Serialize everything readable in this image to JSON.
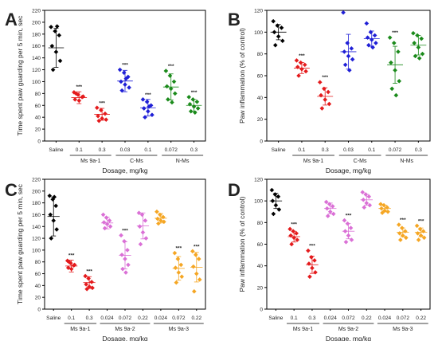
{
  "figure": {
    "xlabel_common": "Dosage, mg/kg"
  },
  "chart_data": [
    {
      "panel": "A",
      "type": "scatter",
      "ylabel": "Time spent paw guarding per 5 min, sec",
      "xlabel": "Dosage, mg/kg",
      "ylim": [
        0,
        220
      ],
      "yticks": [
        0,
        20,
        40,
        60,
        80,
        100,
        120,
        140,
        160,
        180,
        200,
        220
      ],
      "categories": [
        "Saline",
        "0.1",
        "0.3",
        "0.03",
        "0.1",
        "0.072",
        "0.3"
      ],
      "groups": [
        {
          "label": "Ms 9a-1",
          "span": [
            1,
            2
          ]
        },
        {
          "label": "C-Ms",
          "span": [
            3,
            4
          ]
        },
        {
          "label": "N-Ms",
          "span": [
            5,
            6
          ]
        }
      ],
      "series": [
        {
          "color": "#000000",
          "marker": "diamond",
          "mean": 157,
          "sd": 33,
          "sig": "",
          "points": [
            192,
            185,
            178,
            160,
            150,
            135,
            120,
            193
          ]
        },
        {
          "color": "#e41a1c",
          "marker": "diamond",
          "mean": 73,
          "sd": 10,
          "sig": "***",
          "points": [
            82,
            78,
            74,
            70,
            68,
            75,
            80
          ]
        },
        {
          "color": "#e41a1c",
          "marker": "diamond",
          "mean": 45,
          "sd": 10,
          "sig": "***",
          "points": [
            56,
            52,
            46,
            42,
            38,
            36,
            34
          ]
        },
        {
          "color": "#1f1fd6",
          "marker": "diamond",
          "mean": 101,
          "sd": 18,
          "sig": "***",
          "points": [
            120,
            115,
            108,
            100,
            95,
            90,
            85,
            105
          ]
        },
        {
          "color": "#1f1fd6",
          "marker": "diamond",
          "mean": 56,
          "sd": 14,
          "sig": "***",
          "points": [
            70,
            66,
            60,
            55,
            50,
            44,
            40,
            58
          ]
        },
        {
          "color": "#1a8a1a",
          "marker": "diamond",
          "mean": 91,
          "sd": 22,
          "sig": "***",
          "points": [
            118,
            110,
            100,
            92,
            88,
            80,
            70,
            65
          ]
        },
        {
          "color": "#1a8a1a",
          "marker": "diamond",
          "mean": 60,
          "sd": 10,
          "sig": "***",
          "points": [
            74,
            70,
            66,
            62,
            58,
            55,
            50,
            48
          ]
        }
      ]
    },
    {
      "panel": "B",
      "type": "scatter",
      "ylabel": "Paw inflammation (% of control)",
      "xlabel": "Dosage, mg/kg",
      "ylim": [
        0,
        120
      ],
      "yticks": [
        0,
        20,
        40,
        60,
        80,
        100,
        120
      ],
      "categories": [
        "Saline",
        "0.1",
        "0.3",
        "0.03",
        "0.1",
        "0.072",
        "0.3"
      ],
      "groups": [
        {
          "label": "Ms 9a-1",
          "span": [
            1,
            2
          ]
        },
        {
          "label": "C-Ms",
          "span": [
            3,
            4
          ]
        },
        {
          "label": "N-Ms",
          "span": [
            5,
            6
          ]
        }
      ],
      "series": [
        {
          "color": "#000000",
          "marker": "diamond",
          "mean": 100,
          "sd": 7,
          "sig": "",
          "points": [
            110,
            106,
            104,
            100,
            96,
            92,
            88
          ]
        },
        {
          "color": "#e41a1c",
          "marker": "diamond",
          "mean": 67,
          "sd": 5,
          "sig": "***",
          "points": [
            74,
            72,
            70,
            68,
            66,
            64,
            60
          ]
        },
        {
          "color": "#e41a1c",
          "marker": "diamond",
          "mean": 41,
          "sd": 8,
          "sig": "***",
          "points": [
            54,
            48,
            45,
            42,
            38,
            34,
            30
          ]
        },
        {
          "color": "#1f1fd6",
          "marker": "diamond",
          "mean": 82,
          "sd": 16,
          "sig": "",
          "points": [
            118,
            90,
            85,
            82,
            78,
            75,
            70,
            65
          ]
        },
        {
          "color": "#1f1fd6",
          "marker": "diamond",
          "mean": 94,
          "sd": 7,
          "sig": "",
          "points": [
            108,
            100,
            97,
            95,
            93,
            90,
            88,
            86
          ]
        },
        {
          "color": "#1a8a1a",
          "marker": "diamond",
          "mean": 70,
          "sd": 17,
          "sig": "***",
          "points": [
            95,
            90,
            82,
            72,
            65,
            55,
            48,
            42
          ]
        },
        {
          "color": "#1a8a1a",
          "marker": "diamond",
          "mean": 88,
          "sd": 9,
          "sig": "",
          "points": [
            99,
            97,
            94,
            90,
            86,
            80,
            78,
            76
          ]
        }
      ]
    },
    {
      "panel": "C",
      "type": "scatter",
      "ylabel": "Time spent paw guarding per 5 min, sec",
      "xlabel": "Dosage, mg/kg",
      "ylim": [
        0,
        220
      ],
      "yticks": [
        0,
        20,
        40,
        60,
        80,
        100,
        120,
        140,
        160,
        180,
        200,
        220
      ],
      "categories": [
        "Saline",
        "0.1",
        "0.3",
        "0.024",
        "0.072",
        "0.22",
        "0.024",
        "0.072",
        "0.22"
      ],
      "groups": [
        {
          "label": "Ms 9a-1",
          "span": [
            1,
            2
          ]
        },
        {
          "label": "Ms 9a-2",
          "span": [
            3,
            5
          ]
        },
        {
          "label": "Ms 9a-3",
          "span": [
            6,
            8
          ]
        }
      ],
      "series": [
        {
          "color": "#000000",
          "marker": "diamond",
          "mean": 157,
          "sd": 33,
          "sig": "",
          "points": [
            192,
            186,
            175,
            160,
            150,
            135,
            120,
            190
          ]
        },
        {
          "color": "#e41a1c",
          "marker": "diamond",
          "mean": 73,
          "sd": 10,
          "sig": "***",
          "points": [
            82,
            78,
            74,
            70,
            68,
            75,
            80
          ]
        },
        {
          "color": "#e41a1c",
          "marker": "diamond",
          "mean": 45,
          "sd": 10,
          "sig": "***",
          "points": [
            56,
            52,
            46,
            42,
            38,
            36,
            34
          ]
        },
        {
          "color": "#da70d6",
          "marker": "diamond",
          "mean": 146,
          "sd": 10,
          "sig": "",
          "points": [
            160,
            155,
            150,
            147,
            144,
            140,
            137
          ]
        },
        {
          "color": "#da70d6",
          "marker": "diamond",
          "mean": 91,
          "sd": 23,
          "sig": "***",
          "points": [
            125,
            115,
            100,
            92,
            85,
            75,
            68,
            62
          ]
        },
        {
          "color": "#da70d6",
          "marker": "diamond",
          "mean": 141,
          "sd": 22,
          "sig": "",
          "points": [
            163,
            160,
            150,
            140,
            130,
            120,
            110
          ]
        },
        {
          "color": "#f5a623",
          "marker": "diamond",
          "mean": 154,
          "sd": 8,
          "sig": "",
          "points": [
            165,
            160,
            156,
            153,
            150,
            148,
            145
          ]
        },
        {
          "color": "#f5a623",
          "marker": "diamond",
          "mean": 69,
          "sd": 20,
          "sig": "***",
          "points": [
            95,
            85,
            75,
            70,
            62,
            55,
            45
          ]
        },
        {
          "color": "#f5a623",
          "marker": "diamond",
          "mean": 71,
          "sd": 25,
          "sig": "***",
          "points": [
            98,
            92,
            85,
            72,
            60,
            50,
            30
          ]
        }
      ]
    },
    {
      "panel": "D",
      "type": "scatter",
      "ylabel": "Paw inflammation (% of control)",
      "xlabel": "Dosage, mg/kg",
      "ylim": [
        0,
        120
      ],
      "yticks": [
        0,
        20,
        40,
        60,
        80,
        100,
        120
      ],
      "categories": [
        "Saline",
        "0.1",
        "0.3",
        "0.024",
        "0.072",
        "0.22",
        "0.024",
        "0.072",
        "0.22"
      ],
      "groups": [
        {
          "label": "Ms 9a-1",
          "span": [
            1,
            2
          ]
        },
        {
          "label": "Ms 9a-2",
          "span": [
            3,
            5
          ]
        },
        {
          "label": "Ms 9a-3",
          "span": [
            6,
            8
          ]
        }
      ],
      "series": [
        {
          "color": "#000000",
          "marker": "diamond",
          "mean": 100,
          "sd": 7,
          "sig": "",
          "points": [
            110,
            106,
            104,
            100,
            96,
            92,
            88
          ]
        },
        {
          "color": "#e41a1c",
          "marker": "diamond",
          "mean": 67,
          "sd": 5,
          "sig": "***",
          "points": [
            74,
            72,
            70,
            68,
            66,
            64,
            60
          ]
        },
        {
          "color": "#e41a1c",
          "marker": "diamond",
          "mean": 41,
          "sd": 8,
          "sig": "***",
          "points": [
            54,
            48,
            45,
            42,
            38,
            34,
            30
          ]
        },
        {
          "color": "#da70d6",
          "marker": "diamond",
          "mean": 93,
          "sd": 5,
          "sig": "",
          "points": [
            99,
            97,
            95,
            93,
            90,
            88,
            86
          ]
        },
        {
          "color": "#da70d6",
          "marker": "diamond",
          "mean": 72,
          "sd": 7,
          "sig": "***",
          "points": [
            82,
            79,
            75,
            72,
            68,
            64,
            62
          ]
        },
        {
          "color": "#da70d6",
          "marker": "diamond",
          "mean": 101,
          "sd": 5,
          "sig": "",
          "points": [
            108,
            106,
            104,
            101,
            98,
            96,
            94
          ]
        },
        {
          "color": "#f5a623",
          "marker": "diamond",
          "mean": 93,
          "sd": 3,
          "sig": "",
          "points": [
            97,
            96,
            94,
            93,
            91,
            90,
            89
          ]
        },
        {
          "color": "#f5a623",
          "marker": "diamond",
          "mean": 71,
          "sd": 4,
          "sig": "***",
          "points": [
            78,
            75,
            72,
            70,
            68,
            66,
            64
          ]
        },
        {
          "color": "#f5a623",
          "marker": "diamond",
          "mean": 71,
          "sd": 4,
          "sig": "***",
          "points": [
            77,
            74,
            72,
            70,
            68,
            66,
            64
          ]
        }
      ]
    }
  ]
}
